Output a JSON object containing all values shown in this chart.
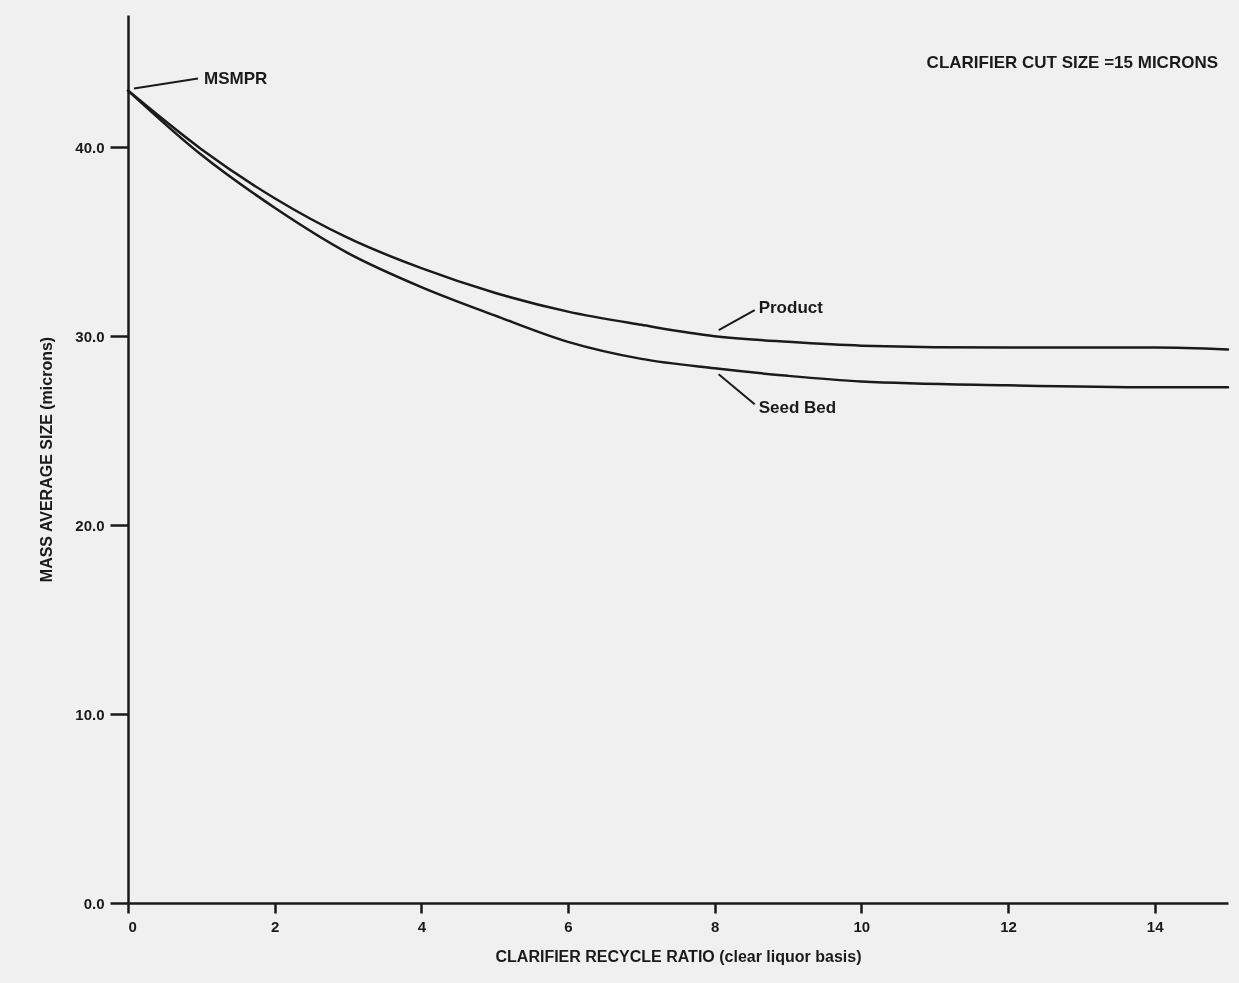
{
  "chart_data": {
    "type": "line",
    "xlabel": "CLARIFIER RECYCLE RATIO (clear liquor basis)",
    "ylabel": "MASS AVERAGE SIZE (microns)",
    "xlim": [
      0,
      15
    ],
    "ylim": [
      0,
      47
    ],
    "xticks": [
      0,
      2,
      4,
      6,
      8,
      10,
      12,
      14
    ],
    "yticks": [
      {
        "value": 0,
        "label": "0.0"
      },
      {
        "value": 10,
        "label": "10.0"
      },
      {
        "value": 20,
        "label": "20.0"
      },
      {
        "value": 30,
        "label": "30.0"
      },
      {
        "value": 40,
        "label": "40.0"
      }
    ],
    "grid": false,
    "marker": "none",
    "line_style": "solid",
    "series": [
      {
        "name": "Product",
        "color": "#1a1a1a",
        "x": [
          0,
          1,
          2,
          3,
          4,
          5,
          6,
          7,
          8,
          9,
          10,
          12,
          14,
          15
        ],
        "values": [
          43,
          39.9,
          37.3,
          35.2,
          33.6,
          32.3,
          31.3,
          30.6,
          30.0,
          29.7,
          29.5,
          29.4,
          29.4,
          29.3
        ]
      },
      {
        "name": "Seed Bed",
        "color": "#1a1a1a",
        "x": [
          0,
          1,
          2,
          3,
          4,
          5,
          6,
          7,
          8,
          9,
          10,
          12,
          14,
          15
        ],
        "values": [
          43,
          39.6,
          36.8,
          34.4,
          32.6,
          31.1,
          29.7,
          28.8,
          28.3,
          27.9,
          27.6,
          27.4,
          27.3,
          27.3
        ]
      }
    ],
    "annotations": [
      {
        "text": "MSMPR",
        "x": 0,
        "y": 43
      },
      "CLARIFIER CUT SIZE =15 MICRONS"
    ]
  }
}
